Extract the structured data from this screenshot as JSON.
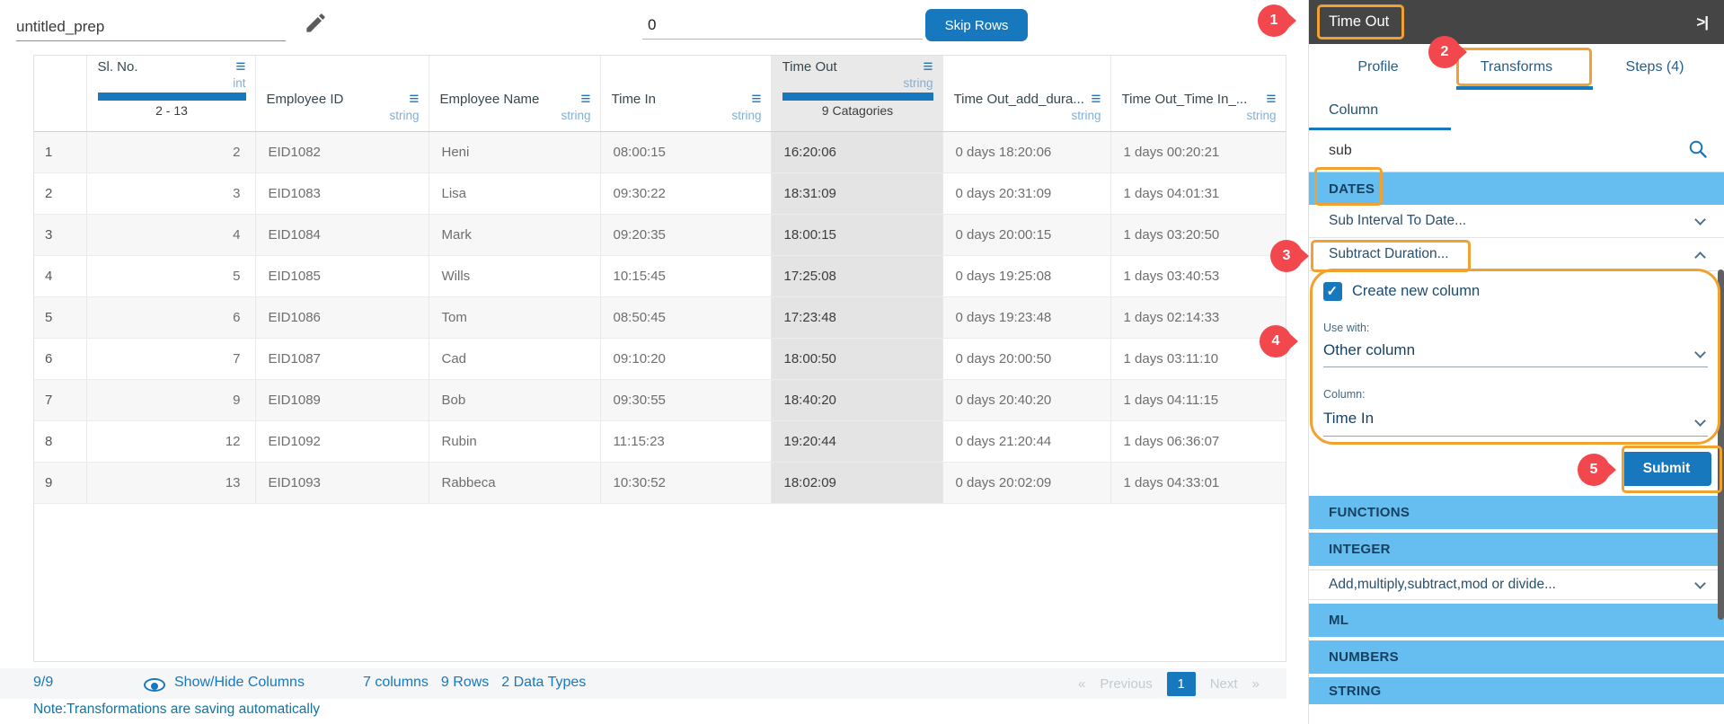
{
  "topbar": {
    "prep_name": "untitled_prep",
    "skip_rows_value": "0",
    "skip_rows_button": "Skip Rows"
  },
  "table": {
    "columns": [
      {
        "key": "slno",
        "name": "Sl. No.",
        "type": "int",
        "range": "2 - 13"
      },
      {
        "key": "employee_id",
        "name": "Employee ID",
        "type": "string"
      },
      {
        "key": "employee_name",
        "name": "Employee Name",
        "type": "string"
      },
      {
        "key": "time_in",
        "name": "Time In",
        "type": "string"
      },
      {
        "key": "time_out",
        "name": "Time Out",
        "type": "string",
        "categories": "9 Catagories"
      },
      {
        "key": "time_out_add_dura",
        "name": "Time Out_add_dura...",
        "type": "string"
      },
      {
        "key": "time_out_time_in",
        "name": "Time Out_Time In_...",
        "type": "string"
      }
    ],
    "rows": [
      {
        "idx": "1",
        "cells": [
          "2",
          "EID1082",
          "Heni",
          "08:00:15",
          "16:20:06",
          "0 days 18:20:06",
          "1 days 00:20:21"
        ]
      },
      {
        "idx": "2",
        "cells": [
          "3",
          "EID1083",
          "Lisa",
          "09:30:22",
          "18:31:09",
          "0 days 20:31:09",
          "1 days 04:01:31"
        ]
      },
      {
        "idx": "3",
        "cells": [
          "4",
          "EID1084",
          "Mark",
          "09:20:35",
          "18:00:15",
          "0 days 20:00:15",
          "1 days 03:20:50"
        ]
      },
      {
        "idx": "4",
        "cells": [
          "5",
          "EID1085",
          "Wills",
          "10:15:45",
          "17:25:08",
          "0 days 19:25:08",
          "1 days 03:40:53"
        ]
      },
      {
        "idx": "5",
        "cells": [
          "6",
          "EID1086",
          "Tom",
          "08:50:45",
          "17:23:48",
          "0 days 19:23:48",
          "1 days 02:14:33"
        ]
      },
      {
        "idx": "6",
        "cells": [
          "7",
          "EID1087",
          "Cad",
          "09:10:20",
          "18:00:50",
          "0 days 20:00:50",
          "1 days 03:11:10"
        ]
      },
      {
        "idx": "7",
        "cells": [
          "9",
          "EID1089",
          "Bob",
          "09:30:55",
          "18:40:20",
          "0 days 20:40:20",
          "1 days 04:11:15"
        ]
      },
      {
        "idx": "8",
        "cells": [
          "12",
          "EID1092",
          "Rubin",
          "11:15:23",
          "19:20:44",
          "0 days 21:20:44",
          "1 days 06:36:07"
        ]
      },
      {
        "idx": "9",
        "cells": [
          "13",
          "EID1093",
          "Rabbeca",
          "10:30:52",
          "18:02:09",
          "0 days 20:02:09",
          "1 days 04:33:01"
        ]
      }
    ]
  },
  "footer": {
    "row_count": "9/9",
    "show_hide": "Show/Hide Columns",
    "columns_summary": "7 columns",
    "rows_summary": "9 Rows",
    "types_summary": "2 Data Types",
    "pagination": {
      "prev_arrow": "«",
      "previous": "Previous",
      "page": "1",
      "next": "Next",
      "next_arrow": "»"
    },
    "note": "Note:Transformations are saving automatically"
  },
  "panel": {
    "title": "Time Out",
    "collapse_glyph": ">|",
    "tabs": [
      {
        "label": "Profile",
        "active": false
      },
      {
        "label": "Transforms",
        "active": true
      },
      {
        "label": "Steps (4)",
        "active": false
      }
    ],
    "subtab": "Column",
    "search_value": "sub",
    "dates": {
      "header": "DATES",
      "items": [
        {
          "label": "Sub Interval To Date...",
          "state": "collapsed"
        },
        {
          "label": "Subtract Duration...",
          "state": "expanded"
        }
      ]
    },
    "form": {
      "checkbox_label": "Create new column",
      "checkbox_checked": true,
      "use_with_label": "Use with:",
      "use_with_value": "Other column",
      "column_label": "Column:",
      "column_value": "Time In",
      "submit_label": "Submit"
    },
    "lower": [
      {
        "type": "header",
        "label": "FUNCTIONS"
      },
      {
        "type": "header",
        "label": "INTEGER"
      },
      {
        "type": "item",
        "label": "Add,multiply,subtract,mod or divide..."
      },
      {
        "type": "header",
        "label": "ML"
      },
      {
        "type": "header",
        "label": "NUMBERS"
      },
      {
        "type": "header",
        "label": "STRING"
      }
    ]
  },
  "annotations": {
    "steps": [
      "1",
      "2",
      "3",
      "4",
      "5"
    ]
  },
  "colors": {
    "accent_blue": "#1778bd",
    "light_blue_section": "#66bdf0",
    "dark_header": "#454545",
    "annotation_orange": "#f0a12f",
    "annotation_red": "#f2484d"
  }
}
